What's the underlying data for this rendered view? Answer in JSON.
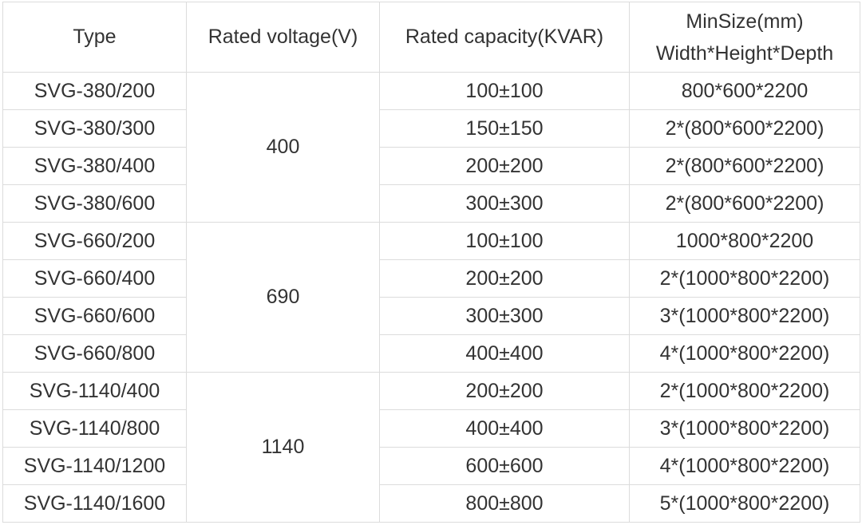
{
  "table": {
    "header": {
      "type": "Type",
      "voltage": "Rated voltage(V)",
      "capacity": "Rated capacity(KVAR)",
      "size": [
        "MinSize(mm)",
        "Width*Height*Depth"
      ]
    },
    "groups": [
      {
        "voltage": "400",
        "rows": [
          [
            "SVG-380/200",
            "100±100",
            "800*600*2200"
          ],
          [
            "SVG-380/300",
            "150±150",
            "2*(800*600*2200)"
          ],
          [
            "SVG-380/400",
            "200±200",
            "2*(800*600*2200)"
          ],
          [
            "SVG-380/600",
            "300±300",
            "2*(800*600*2200)"
          ]
        ]
      },
      {
        "voltage": "690",
        "rows": [
          [
            "SVG-660/200",
            "100±100",
            "1000*800*2200"
          ],
          [
            "SVG-660/400",
            "200±200",
            "2*(1000*800*2200)"
          ],
          [
            "SVG-660/600",
            "300±300",
            "3*(1000*800*2200)"
          ],
          [
            "SVG-660/800",
            "400±400",
            "4*(1000*800*2200)"
          ]
        ]
      },
      {
        "voltage": "1140",
        "rows": [
          [
            "SVG-1140/400",
            "200±200",
            "2*(1000*800*2200)"
          ],
          [
            "SVG-1140/800",
            "400±400",
            "3*(1000*800*2200)"
          ],
          [
            "SVG-1140/1200",
            "600±600",
            "4*(1000*800*2200)"
          ],
          [
            "SVG-1140/1600",
            "800±800",
            "5*(1000*800*2200)"
          ]
        ]
      }
    ]
  }
}
